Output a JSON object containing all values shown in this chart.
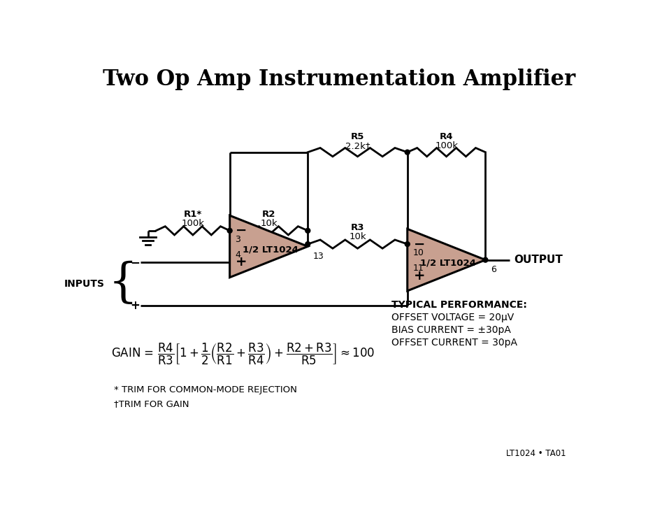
{
  "title": "Two Op Amp Instrumentation Amplifier",
  "title_fontsize": 22,
  "title_fontweight": "bold",
  "bg_color": "#FFFFFF",
  "amp_fill_color": "#C8A090",
  "performance_text": [
    "TYPICAL PERFORMANCE:",
    "OFFSET VOLTAGE = 20μV",
    "BIAS CURRENT = ±30pA",
    "OFFSET CURRENT = 30pA"
  ],
  "footnote1": "* TRIM FOR COMMON-MODE REJECTION",
  "footnote2": "†TRIM FOR GAIN",
  "watermark": "LT1024 • TA01"
}
